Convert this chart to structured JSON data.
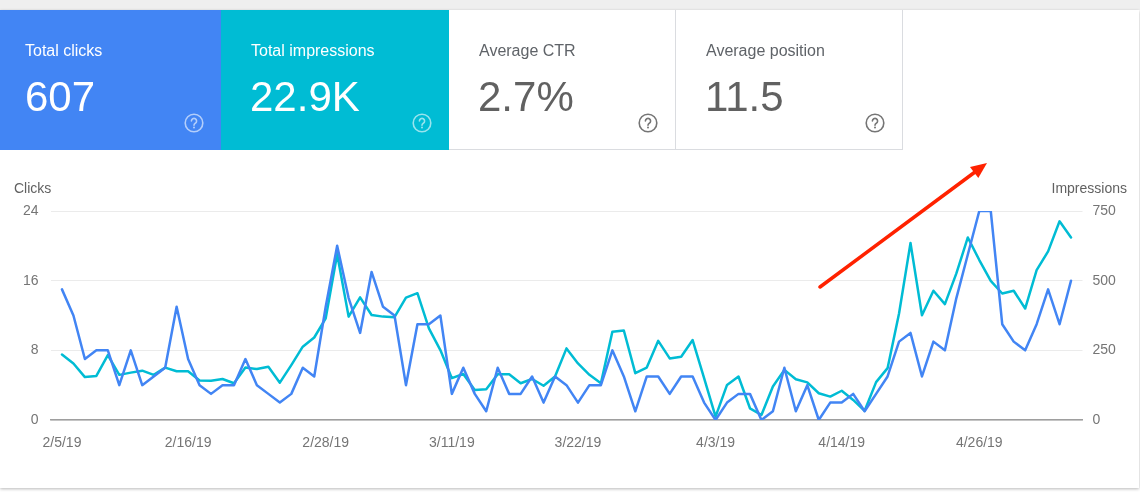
{
  "chart_data": [
    {
      "type": "other",
      "categories": [
        "Total clicks",
        "Total impressions",
        "Average CTR",
        "Average position"
      ],
      "value_labels": [
        "607",
        "22.9K",
        "2.7%",
        "11.5"
      ],
      "colors": [
        "#4285f4",
        "#00bcd4",
        "#ffffff",
        "#ffffff"
      ]
    },
    {
      "type": "line",
      "ylabel": "Clicks",
      "y2label": "Impressions",
      "grid": "y",
      "marker": "none",
      "x": [
        "--02-05",
        "--02-06",
        "--02-07",
        "--02-08",
        "--02-09",
        "--02-10",
        "--02-11",
        "--02-12",
        "--02-13",
        "--02-14",
        "--02-15",
        "--02-16",
        "--02-17",
        "--02-18",
        "--02-19",
        "--02-20",
        "--02-21",
        "--02-22",
        "--02-23",
        "--02-24",
        "--02-25",
        "--02-26",
        "--02-27",
        "--02-28",
        "--03-01",
        "--03-02",
        "--03-03",
        "--03-04",
        "--03-05",
        "--03-06",
        "--03-07",
        "--03-08",
        "--03-09",
        "--03-10",
        "--03-11",
        "--03-12",
        "--03-13",
        "--03-14",
        "--03-15",
        "--03-16",
        "--03-17",
        "--03-18",
        "--03-19",
        "--03-20",
        "--03-21",
        "--03-22",
        "--03-23",
        "--03-24",
        "--03-25",
        "--03-26",
        "--03-27",
        "--03-28",
        "--03-29",
        "--03-30",
        "--03-31",
        "--04-01",
        "--04-02",
        "--04-03",
        "--04-04",
        "--04-05",
        "--04-06",
        "--04-07",
        "--04-08",
        "--04-09",
        "--04-10",
        "--04-11",
        "--04-12",
        "--04-13",
        "--04-14",
        "--04-15",
        "--04-16",
        "--04-17",
        "--04-18",
        "--04-19",
        "--04-20",
        "--04-21",
        "--04-22",
        "--04-23",
        "--04-24",
        "--04-25",
        "--04-26",
        "--04-27",
        "--04-28",
        "--04-29",
        "--04-30",
        "--05-01",
        "--05-02",
        "--05-03",
        "--05-04"
      ],
      "xlim": [
        "--02-04",
        "--05-05"
      ],
      "xticks": [
        {
          "value": "--02-05",
          "label": "2/5/19"
        },
        {
          "value": "--02-16",
          "label": "2/16/19"
        },
        {
          "value": "--02-28",
          "label": "2/28/19"
        },
        {
          "value": "--03-11",
          "label": "3/11/19"
        },
        {
          "value": "--03-22",
          "label": "3/22/19"
        },
        {
          "value": "--04-03",
          "label": "4/3/19"
        },
        {
          "value": "--04-14",
          "label": "4/14/19"
        },
        {
          "value": "--04-26",
          "label": "4/26/19"
        }
      ],
      "ylim": [
        0,
        24
      ],
      "yticks": [
        0,
        8,
        16,
        24
      ],
      "y2lim": [
        0,
        750
      ],
      "y2ticks": [
        0,
        250,
        500,
        750
      ],
      "series": [
        {
          "color": "#4285f4",
          "values": [
            15,
            12,
            7,
            8,
            8,
            4,
            8,
            4,
            5,
            6,
            13,
            7,
            4,
            3,
            4,
            4,
            7,
            4,
            3,
            2,
            3,
            6,
            5,
            13,
            20,
            14,
            10,
            17,
            13,
            12,
            4,
            11,
            11,
            12,
            3,
            6,
            3,
            1,
            6,
            3,
            3,
            5,
            2,
            5,
            4,
            2,
            4,
            4,
            8,
            5,
            1,
            5,
            5,
            3,
            5,
            5,
            2,
            0,
            2,
            3,
            3,
            0,
            1,
            6,
            1,
            4,
            0,
            2,
            2,
            3,
            1,
            3,
            5,
            9,
            10,
            5,
            9,
            8,
            14,
            19,
            24,
            24,
            11,
            9,
            8,
            11,
            15,
            11,
            16
          ]
        },
        {
          "color": "#00bcd4",
          "axis": "y2",
          "values": [
            235,
            203,
            154,
            158,
            233,
            162,
            170,
            177,
            162,
            188,
            175,
            175,
            142,
            141,
            147,
            132,
            188,
            183,
            191,
            134,
            197,
            263,
            296,
            365,
            595,
            371,
            440,
            377,
            371,
            369,
            439,
            455,
            329,
            251,
            150,
            165,
            108,
            110,
            164,
            164,
            132,
            147,
            123,
            156,
            257,
            203,
            162,
            132,
            317,
            321,
            168,
            188,
            284,
            221,
            227,
            287,
            150,
            12,
            126,
            156,
            42,
            18,
            120,
            180,
            146,
            135,
            96,
            84,
            105,
            72,
            33,
            136,
            186,
            382,
            635,
            376,
            464,
            416,
            526,
            655,
            574,
            499,
            454,
            464,
            400,
            538,
            605,
            713,
            655
          ]
        }
      ]
    }
  ]
}
